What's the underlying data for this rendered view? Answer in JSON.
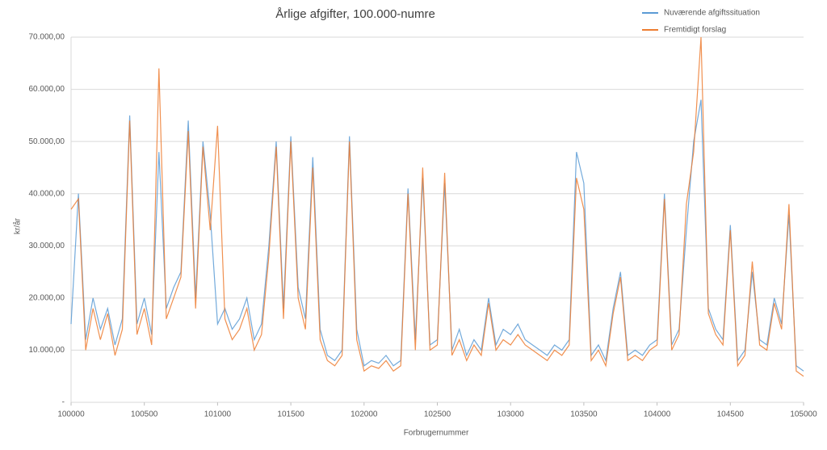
{
  "chart_data": {
    "type": "line",
    "title": "Årlige afgifter, 100.000-numre",
    "x_label": "Forbrugernummer",
    "y_label": "kr/år",
    "x": [
      100000,
      100050,
      100100,
      100150,
      100200,
      100250,
      100300,
      100350,
      100400,
      100450,
      100500,
      100550,
      100600,
      100650,
      100700,
      100750,
      100800,
      100850,
      100900,
      100950,
      101000,
      101050,
      101100,
      101150,
      101200,
      101250,
      101300,
      101350,
      101400,
      101450,
      101500,
      101550,
      101600,
      101650,
      101700,
      101750,
      101800,
      101850,
      101900,
      101950,
      102000,
      102050,
      102100,
      102150,
      102200,
      102250,
      102300,
      102350,
      102400,
      102450,
      102500,
      102550,
      102600,
      102650,
      102700,
      102750,
      102800,
      102850,
      102900,
      102950,
      103000,
      103050,
      103100,
      103150,
      103200,
      103250,
      103300,
      103350,
      103400,
      103450,
      103500,
      103550,
      103600,
      103650,
      103700,
      103750,
      103800,
      103850,
      103900,
      103950,
      104000,
      104050,
      104100,
      104150,
      104200,
      104250,
      104300,
      104350,
      104400,
      104450,
      104500,
      104550,
      104600,
      104650,
      104700,
      104750,
      104800,
      104850,
      104900,
      104950,
      105000
    ],
    "series": [
      {
        "name": "Nuværende afgiftssituation",
        "color": "#5b9bd5",
        "values": [
          15000,
          40000,
          12000,
          20000,
          14000,
          18000,
          11000,
          16000,
          55000,
          15000,
          20000,
          13000,
          48000,
          18000,
          22000,
          25000,
          54000,
          20000,
          50000,
          36000,
          15000,
          18000,
          14000,
          16000,
          20000,
          12000,
          15000,
          30000,
          50000,
          18000,
          51000,
          22000,
          16000,
          47000,
          14000,
          9000,
          8000,
          10000,
          51000,
          14000,
          7000,
          8000,
          7500,
          9000,
          7000,
          8000,
          41000,
          12000,
          43000,
          11000,
          12000,
          42000,
          10000,
          14000,
          9000,
          12000,
          10000,
          20000,
          11000,
          14000,
          13000,
          15000,
          12000,
          11000,
          10000,
          9000,
          11000,
          10000,
          12000,
          48000,
          42000,
          9000,
          11000,
          8000,
          18000,
          25000,
          9000,
          10000,
          9000,
          11000,
          12000,
          40000,
          11000,
          14000,
          33000,
          50000,
          58000,
          18000,
          14000,
          12000,
          34000,
          8000,
          10000,
          25000,
          12000,
          11000,
          20000,
          15000,
          36000,
          7000,
          6000
        ]
      },
      {
        "name": "Fremtidigt forslag",
        "color": "#ed7d31",
        "values": [
          37000,
          39000,
          10000,
          18000,
          12000,
          17000,
          9000,
          14000,
          54000,
          13000,
          18000,
          11000,
          64000,
          16000,
          20000,
          24000,
          52000,
          18000,
          49000,
          33000,
          53000,
          16000,
          12000,
          14000,
          18000,
          10000,
          13000,
          28000,
          49000,
          16000,
          50000,
          20000,
          14000,
          45000,
          12000,
          8000,
          7000,
          9000,
          50000,
          12000,
          6000,
          7000,
          6500,
          8000,
          6000,
          7000,
          40000,
          10000,
          45000,
          10000,
          11000,
          44000,
          9000,
          12000,
          8000,
          11000,
          9000,
          19000,
          10000,
          12000,
          11000,
          13000,
          11000,
          10000,
          9000,
          8000,
          10000,
          9000,
          11000,
          43000,
          37000,
          8000,
          10000,
          7000,
          17000,
          24000,
          8000,
          9000,
          8000,
          10000,
          11000,
          39000,
          10000,
          13000,
          38000,
          48000,
          70000,
          17000,
          13000,
          11000,
          33000,
          7000,
          9000,
          27000,
          11000,
          10000,
          19000,
          14000,
          38000,
          6000,
          5000
        ]
      }
    ],
    "xlim": [
      100000,
      105000
    ],
    "xticks": [
      100000,
      100500,
      101000,
      101500,
      102000,
      102500,
      103000,
      103500,
      104000,
      104500,
      105000
    ],
    "ylim": [
      0,
      70000
    ],
    "yticks": [
      {
        "value": 0,
        "label": "-"
      },
      {
        "value": 10000,
        "label": "10.000,00"
      },
      {
        "value": 20000,
        "label": "20.000,00"
      },
      {
        "value": 30000,
        "label": "30.000,00"
      },
      {
        "value": 40000,
        "label": "40.000,00"
      },
      {
        "value": 50000,
        "label": "50.000,00"
      },
      {
        "value": 60000,
        "label": "60.000,00"
      },
      {
        "value": 70000,
        "label": "70.000,00"
      }
    ],
    "grid": true
  }
}
